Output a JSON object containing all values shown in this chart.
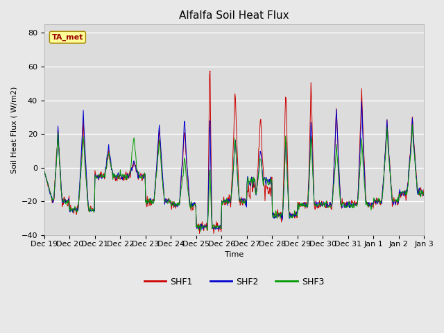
{
  "title": "Alfalfa Soil Heat Flux",
  "ylabel": "Soil Heat Flux ( W/m2)",
  "xlabel": "Time",
  "ylim": [
    -40,
    85
  ],
  "bg_color": "#e8e8e8",
  "plot_bg_color": "#dcdcdc",
  "annotation_text": "TA_met",
  "annotation_bg": "#ffff99",
  "annotation_border": "#aa8800",
  "annotation_text_color": "#990000",
  "shf1_color": "#cc0000",
  "shf2_color": "#0000cc",
  "shf3_color": "#009900",
  "xtick_labels": [
    "Dec 19",
    "Dec 20",
    "Dec 21",
    "Dec 22",
    "Dec 23",
    "Dec 24",
    "Dec 25",
    "Dec 26",
    "Dec 27",
    "Dec 28",
    "Dec 29",
    "Dec 30",
    "Dec 31",
    "Jan 1",
    "Jan 2",
    "Jan 3"
  ],
  "xtick_positions": [
    0,
    24,
    48,
    72,
    96,
    120,
    144,
    168,
    192,
    216,
    240,
    264,
    288,
    312,
    336,
    360
  ]
}
